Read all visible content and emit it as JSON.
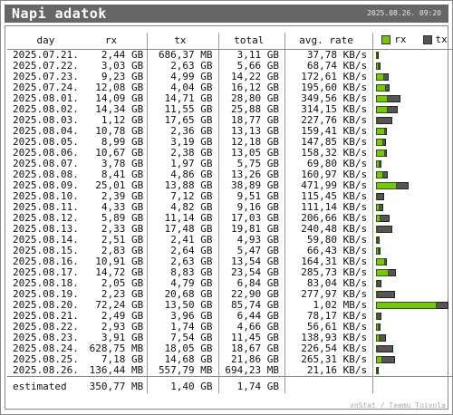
{
  "header": {
    "title": "Napi adatok",
    "timestamp": "2025.08.26. 09:20"
  },
  "columns": {
    "day": "day",
    "rx": "rx",
    "tx": "tx",
    "total": "total",
    "rate": "avg. rate",
    "legend_rx": "rx",
    "legend_tx": "tx"
  },
  "colors": {
    "rx": "#79c314",
    "tx": "#555555"
  },
  "rows": [
    {
      "day": "2025.07.21.",
      "rx": "2,44 GB",
      "tx": "686,37 MB",
      "total": "3,11 GB",
      "rate": "37,78 KB/s",
      "rx_gb": 2.44,
      "tx_gb": 0.686
    },
    {
      "day": "2025.07.22.",
      "rx": "3,03 GB",
      "tx": "2,63 GB",
      "total": "5,66 GB",
      "rate": "68,74 KB/s",
      "rx_gb": 3.03,
      "tx_gb": 2.63
    },
    {
      "day": "2025.07.23.",
      "rx": "9,23 GB",
      "tx": "4,99 GB",
      "total": "14,22 GB",
      "rate": "172,61 KB/s",
      "rx_gb": 9.23,
      "tx_gb": 4.99
    },
    {
      "day": "2025.07.24.",
      "rx": "12,08 GB",
      "tx": "4,04 GB",
      "total": "16,12 GB",
      "rate": "195,60 KB/s",
      "rx_gb": 12.08,
      "tx_gb": 4.04
    },
    {
      "day": "2025.08.01.",
      "rx": "14,09 GB",
      "tx": "14,71 GB",
      "total": "28,80 GB",
      "rate": "349,56 KB/s",
      "rx_gb": 14.09,
      "tx_gb": 14.71
    },
    {
      "day": "2025.08.02.",
      "rx": "14,34 GB",
      "tx": "11,55 GB",
      "total": "25,88 GB",
      "rate": "314,15 KB/s",
      "rx_gb": 14.34,
      "tx_gb": 11.55
    },
    {
      "day": "2025.08.03.",
      "rx": "1,12 GB",
      "tx": "17,65 GB",
      "total": "18,77 GB",
      "rate": "227,76 KB/s",
      "rx_gb": 1.12,
      "tx_gb": 17.65
    },
    {
      "day": "2025.08.04.",
      "rx": "10,78 GB",
      "tx": "2,36 GB",
      "total": "13,13 GB",
      "rate": "159,41 KB/s",
      "rx_gb": 10.78,
      "tx_gb": 2.36
    },
    {
      "day": "2025.08.05.",
      "rx": "8,99 GB",
      "tx": "3,19 GB",
      "total": "12,18 GB",
      "rate": "147,85 KB/s",
      "rx_gb": 8.99,
      "tx_gb": 3.19
    },
    {
      "day": "2025.08.06.",
      "rx": "10,67 GB",
      "tx": "2,38 GB",
      "total": "13,05 GB",
      "rate": "158,32 KB/s",
      "rx_gb": 10.67,
      "tx_gb": 2.38
    },
    {
      "day": "2025.08.07.",
      "rx": "3,78 GB",
      "tx": "1,97 GB",
      "total": "5,75 GB",
      "rate": "69,80 KB/s",
      "rx_gb": 3.78,
      "tx_gb": 1.97
    },
    {
      "day": "2025.08.08.",
      "rx": "8,41 GB",
      "tx": "4,86 GB",
      "total": "13,26 GB",
      "rate": "160,97 KB/s",
      "rx_gb": 8.41,
      "tx_gb": 4.86
    },
    {
      "day": "2025.08.09.",
      "rx": "25,01 GB",
      "tx": "13,88 GB",
      "total": "38,89 GB",
      "rate": "471,99 KB/s",
      "rx_gb": 25.01,
      "tx_gb": 13.88
    },
    {
      "day": "2025.08.10.",
      "rx": "2,39 GB",
      "tx": "7,12 GB",
      "total": "9,51 GB",
      "rate": "115,45 KB/s",
      "rx_gb": 2.39,
      "tx_gb": 7.12
    },
    {
      "day": "2025.08.11.",
      "rx": "4,33 GB",
      "tx": "4,82 GB",
      "total": "9,16 GB",
      "rate": "111,14 KB/s",
      "rx_gb": 4.33,
      "tx_gb": 4.82
    },
    {
      "day": "2025.08.12.",
      "rx": "5,89 GB",
      "tx": "11,14 GB",
      "total": "17,03 GB",
      "rate": "206,66 KB/s",
      "rx_gb": 5.89,
      "tx_gb": 11.14
    },
    {
      "day": "2025.08.13.",
      "rx": "2,33 GB",
      "tx": "17,48 GB",
      "total": "19,81 GB",
      "rate": "240,48 KB/s",
      "rx_gb": 2.33,
      "tx_gb": 17.48
    },
    {
      "day": "2025.08.14.",
      "rx": "2,51 GB",
      "tx": "2,41 GB",
      "total": "4,93 GB",
      "rate": "59,80 KB/s",
      "rx_gb": 2.51,
      "tx_gb": 2.41
    },
    {
      "day": "2025.08.15.",
      "rx": "2,83 GB",
      "tx": "2,64 GB",
      "total": "5,47 GB",
      "rate": "66,43 KB/s",
      "rx_gb": 2.83,
      "tx_gb": 2.64
    },
    {
      "day": "2025.08.16.",
      "rx": "10,91 GB",
      "tx": "2,63 GB",
      "total": "13,54 GB",
      "rate": "164,31 KB/s",
      "rx_gb": 10.91,
      "tx_gb": 2.63
    },
    {
      "day": "2025.08.17.",
      "rx": "14,72 GB",
      "tx": "8,83 GB",
      "total": "23,54 GB",
      "rate": "285,73 KB/s",
      "rx_gb": 14.72,
      "tx_gb": 8.83
    },
    {
      "day": "2025.08.18.",
      "rx": "2,05 GB",
      "tx": "4,79 GB",
      "total": "6,84 GB",
      "rate": "83,04 KB/s",
      "rx_gb": 2.05,
      "tx_gb": 4.79
    },
    {
      "day": "2025.08.19.",
      "rx": "2,23 GB",
      "tx": "20,68 GB",
      "total": "22,90 GB",
      "rate": "277,97 KB/s",
      "rx_gb": 2.23,
      "tx_gb": 20.68
    },
    {
      "day": "2025.08.20.",
      "rx": "72,24 GB",
      "tx": "13,50 GB",
      "total": "85,74 GB",
      "rate": "1,02 MB/s",
      "rx_gb": 72.24,
      "tx_gb": 13.5
    },
    {
      "day": "2025.08.21.",
      "rx": "2,49 GB",
      "tx": "3,96 GB",
      "total": "6,44 GB",
      "rate": "78,17 KB/s",
      "rx_gb": 2.49,
      "tx_gb": 3.96
    },
    {
      "day": "2025.08.22.",
      "rx": "2,93 GB",
      "tx": "1,74 GB",
      "total": "4,66 GB",
      "rate": "56,61 KB/s",
      "rx_gb": 2.93,
      "tx_gb": 1.74
    },
    {
      "day": "2025.08.23.",
      "rx": "3,91 GB",
      "tx": "7,54 GB",
      "total": "11,45 GB",
      "rate": "138,93 KB/s",
      "rx_gb": 3.91,
      "tx_gb": 7.54
    },
    {
      "day": "2025.08.24.",
      "rx": "628,75 MB",
      "tx": "18,05 GB",
      "total": "18,67 GB",
      "rate": "226,54 KB/s",
      "rx_gb": 0.629,
      "tx_gb": 18.05
    },
    {
      "day": "2025.08.25.",
      "rx": "7,18 GB",
      "tx": "14,68 GB",
      "total": "21,86 GB",
      "rate": "265,31 KB/s",
      "rx_gb": 7.18,
      "tx_gb": 14.68
    },
    {
      "day": "2025.08.26.",
      "rx": "136,44 MB",
      "tx": "557,79 MB",
      "total": "694,23 MB",
      "rate": "21,16 KB/s",
      "rx_gb": 0.136,
      "tx_gb": 0.558
    }
  ],
  "estimated": {
    "label": "estimated",
    "rx": "350,77 MB",
    "tx": "1,40 GB",
    "total": "1,74 GB"
  },
  "footer": "vnStat / Teemu Toivola"
}
